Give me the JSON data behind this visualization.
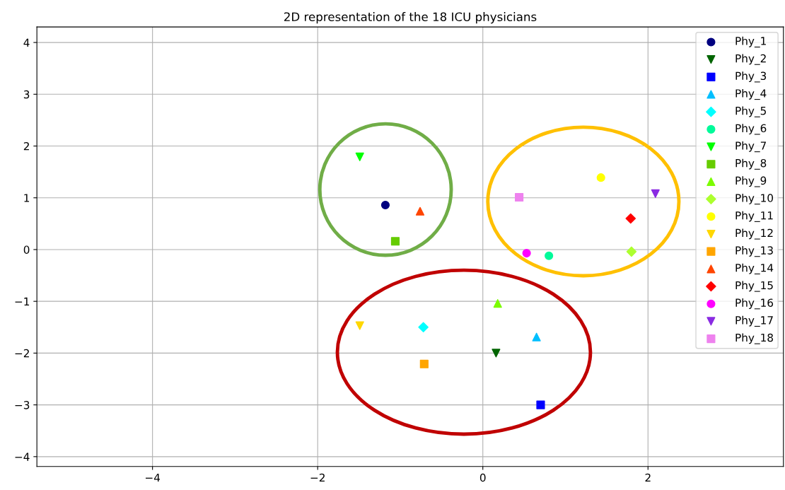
{
  "chart_data": {
    "type": "scatter",
    "title": "2D representation of the 18 ICU physicians",
    "xlim": [
      -5.4,
      3.64
    ],
    "ylim": [
      -4.19,
      4.3
    ],
    "xticks": [
      -4,
      -2,
      0,
      2
    ],
    "yticks": [
      -4,
      -3,
      -2,
      -1,
      0,
      1,
      2,
      3,
      4
    ],
    "grid": true,
    "legend": "top right",
    "series": [
      {
        "name": "Phy_1",
        "color": "#000080",
        "marker": "circle",
        "x": [
          -1.18
        ],
        "values": [
          0.86
        ]
      },
      {
        "name": "Phy_2",
        "color": "#006400",
        "marker": "triangle_down",
        "x": [
          0.16
        ],
        "values": [
          -2.0
        ]
      },
      {
        "name": "Phy_3",
        "color": "#0000ff",
        "marker": "square",
        "x": [
          0.7
        ],
        "values": [
          -3.0
        ]
      },
      {
        "name": "Phy_4",
        "color": "#00bfff",
        "marker": "triangle",
        "x": [
          0.65
        ],
        "values": [
          -1.69
        ]
      },
      {
        "name": "Phy_5",
        "color": "#00ffff",
        "marker": "diamond",
        "x": [
          -0.72
        ],
        "values": [
          -1.5
        ]
      },
      {
        "name": "Phy_6",
        "color": "#00fa9a",
        "marker": "circle",
        "x": [
          0.8
        ],
        "values": [
          -0.12
        ]
      },
      {
        "name": "Phy_7",
        "color": "#00ff00",
        "marker": "triangle_down",
        "x": [
          -1.49
        ],
        "values": [
          1.79
        ]
      },
      {
        "name": "Phy_8",
        "color": "#66cc00",
        "marker": "square",
        "x": [
          -1.06
        ],
        "values": [
          0.16
        ]
      },
      {
        "name": "Phy_9",
        "color": "#7cfc00",
        "marker": "triangle",
        "x": [
          0.18
        ],
        "values": [
          -1.04
        ]
      },
      {
        "name": "Phy_10",
        "color": "#adff2f",
        "marker": "diamond",
        "x": [
          1.8
        ],
        "values": [
          -0.04
        ]
      },
      {
        "name": "Phy_11",
        "color": "#ffff00",
        "marker": "circle",
        "x": [
          1.43
        ],
        "values": [
          1.39
        ]
      },
      {
        "name": "Phy_12",
        "color": "#ffd700",
        "marker": "triangle_down",
        "x": [
          -1.49
        ],
        "values": [
          -1.47
        ]
      },
      {
        "name": "Phy_13",
        "color": "#ffa500",
        "marker": "square",
        "x": [
          -0.71
        ],
        "values": [
          -2.21
        ]
      },
      {
        "name": "Phy_14",
        "color": "#ff4500",
        "marker": "triangle",
        "x": [
          -0.76
        ],
        "values": [
          0.74
        ]
      },
      {
        "name": "Phy_15",
        "color": "#ff0000",
        "marker": "diamond",
        "x": [
          1.79
        ],
        "values": [
          0.6
        ]
      },
      {
        "name": "Phy_16",
        "color": "#ff00ff",
        "marker": "circle",
        "x": [
          0.53
        ],
        "values": [
          -0.07
        ]
      },
      {
        "name": "Phy_17",
        "color": "#8a2be2",
        "marker": "triangle_down",
        "x": [
          2.09
        ],
        "values": [
          1.08
        ]
      },
      {
        "name": "Phy_18",
        "color": "#ee82ee",
        "marker": "square",
        "x": [
          0.44
        ],
        "values": [
          1.01
        ]
      }
    ]
  }
}
